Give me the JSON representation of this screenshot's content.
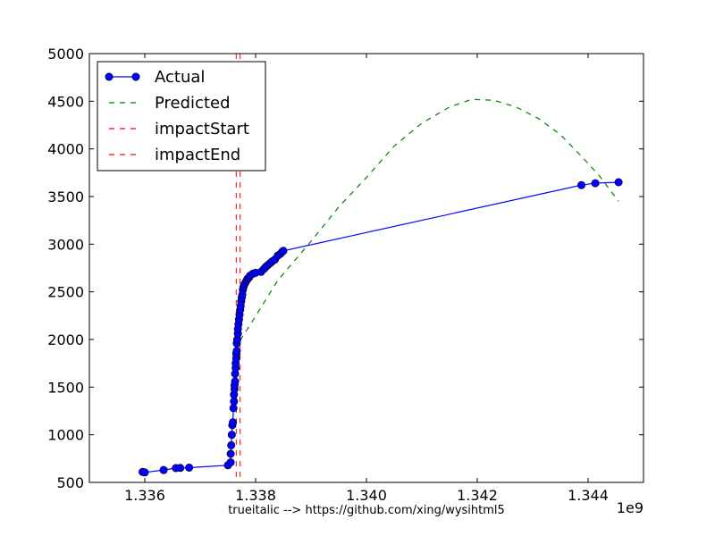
{
  "chart_data": {
    "type": "line",
    "xlabel": "trueitalic --> https://github.com/xing/wysihtml5",
    "ylabel": "",
    "x_offset_label": "1e9",
    "xlim": [
      1.335,
      1.345
    ],
    "ylim": [
      500,
      5000
    ],
    "x_ticks": [
      1.336,
      1.338,
      1.34,
      1.342,
      1.344
    ],
    "x_tick_labels": [
      "1.336",
      "1.338",
      "1.340",
      "1.342",
      "1.344"
    ],
    "y_ticks": [
      500,
      1000,
      1500,
      2000,
      2500,
      3000,
      3500,
      4000,
      4500,
      5000
    ],
    "y_tick_labels": [
      "500",
      "1000",
      "1500",
      "2000",
      "2500",
      "3000",
      "3500",
      "4000",
      "4500",
      "5000"
    ],
    "grid": false,
    "legend_position": "top-left",
    "series": [
      {
        "name": "Actual",
        "style": "solid-with-markers",
        "color": "#0000ff",
        "x": [
          1.33596,
          1.336,
          1.33634,
          1.33656,
          1.33664,
          1.3368,
          1.3375,
          1.33755,
          1.33755,
          1.33756,
          1.33757,
          1.33758,
          1.33759,
          1.3376,
          1.33761,
          1.33761,
          1.33762,
          1.33762,
          1.33763,
          1.33763,
          1.33764,
          1.33764,
          1.33765,
          1.33765,
          1.33766,
          1.33766,
          1.33767,
          1.33768,
          1.33768,
          1.33769,
          1.3377,
          1.33771,
          1.33772,
          1.33773,
          1.33774,
          1.33775,
          1.33776,
          1.33777,
          1.33778,
          1.3378,
          1.33782,
          1.33784,
          1.33786,
          1.33788,
          1.3379,
          1.33795,
          1.338,
          1.3381,
          1.33815,
          1.33818,
          1.33822,
          1.33826,
          1.3383,
          1.33835,
          1.3384,
          1.33845,
          1.33848,
          1.3385,
          1.34388,
          1.34413,
          1.34455
        ],
        "y": [
          610,
          605,
          630,
          650,
          652,
          655,
          680,
          710,
          800,
          890,
          1000,
          1100,
          1130,
          1280,
          1350,
          1420,
          1480,
          1520,
          1560,
          1640,
          1700,
          1750,
          1800,
          1850,
          1880,
          1960,
          2000,
          2060,
          2110,
          2160,
          2210,
          2260,
          2310,
          2350,
          2400,
          2440,
          2470,
          2520,
          2550,
          2580,
          2600,
          2620,
          2640,
          2650,
          2670,
          2690,
          2700,
          2710,
          2740,
          2760,
          2780,
          2800,
          2820,
          2840,
          2880,
          2900,
          2920,
          2930,
          3620,
          3640,
          3650
        ]
      },
      {
        "name": "Predicted",
        "style": "dashed",
        "color": "#008000",
        "x": [
          1.33772,
          1.338,
          1.3384,
          1.339,
          1.3395,
          1.34,
          1.3405,
          1.341,
          1.3415,
          1.3419,
          1.3423,
          1.3427,
          1.3431,
          1.3435,
          1.3439,
          1.3442,
          1.34455
        ],
        "y": [
          1990,
          2245,
          2620,
          3030,
          3390,
          3700,
          4030,
          4270,
          4440,
          4520,
          4510,
          4440,
          4320,
          4150,
          3910,
          3720,
          3450
        ]
      }
    ],
    "vertical_lines": [
      {
        "name": "impactStart",
        "x": 1.33765,
        "color": "#ff0000",
        "style": "dashed"
      },
      {
        "name": "impactEnd",
        "x": 1.33772,
        "color": "#ff0000",
        "style": "dashed"
      }
    ],
    "legend": [
      {
        "label": "Actual",
        "kind": "line-marker",
        "color": "#0000ff"
      },
      {
        "label": "Predicted",
        "kind": "dashed",
        "color": "#008000"
      },
      {
        "label": "impactStart",
        "kind": "dashed",
        "color": "#ff0000"
      },
      {
        "label": "impactEnd",
        "kind": "dashed",
        "color": "#ff0000"
      }
    ]
  }
}
